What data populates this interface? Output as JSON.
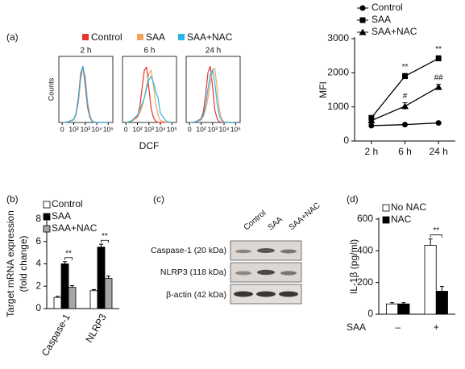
{
  "chart_data": [
    {
      "type": "flow",
      "panel": "(a)",
      "xlabel": "DCF",
      "ylabel": "Counts",
      "legend": [
        {
          "name": "Control",
          "color": "#e8332f"
        },
        {
          "name": "SAA",
          "color": "#f5a35a"
        },
        {
          "name": "SAA+NAC",
          "color": "#2bb5e8"
        }
      ],
      "xlim": [
        0.7,
        5.4
      ],
      "ylim": [
        0,
        100
      ],
      "xticks": [
        {
          "value": 1,
          "label": "0"
        },
        {
          "value": 2,
          "label": "10²"
        },
        {
          "value": 3,
          "label": "10³"
        },
        {
          "value": 4,
          "label": "10⁴"
        },
        {
          "value": 5,
          "label": "10⁵"
        }
      ],
      "x": [
        1,
        1.5,
        2,
        2.2,
        2.4,
        2.6,
        2.8,
        3.0,
        3.2,
        3.4,
        3.6,
        3.8,
        4.0,
        4.5,
        5
      ],
      "subplots": [
        {
          "title": "2 h",
          "series": [
            {
              "values": [
                0,
                1,
                5,
                15,
                40,
                80,
                92,
                60,
                25,
                8,
                2,
                0,
                0,
                0,
                0
              ]
            },
            {
              "values": [
                0,
                1,
                4,
                12,
                32,
                70,
                90,
                75,
                35,
                12,
                3,
                1,
                0,
                0,
                0
              ]
            },
            {
              "values": [
                0,
                1,
                5,
                14,
                36,
                75,
                92,
                68,
                30,
                10,
                2,
                0,
                0,
                0,
                0
              ]
            }
          ]
        },
        {
          "title": "6 h",
          "series": [
            {
              "values": [
                0,
                2,
                10,
                25,
                55,
                85,
                90,
                55,
                22,
                8,
                2,
                0,
                0,
                0,
                0
              ]
            },
            {
              "values": [
                0,
                2,
                8,
                15,
                25,
                40,
                60,
                80,
                85,
                60,
                30,
                12,
                3,
                0,
                0
              ]
            },
            {
              "values": [
                0,
                3,
                12,
                20,
                30,
                40,
                55,
                70,
                75,
                65,
                50,
                40,
                15,
                2,
                0
              ]
            }
          ]
        },
        {
          "title": "24 h",
          "series": [
            {
              "values": [
                0,
                1,
                6,
                18,
                45,
                82,
                92,
                58,
                20,
                6,
                1,
                0,
                0,
                0,
                0
              ]
            },
            {
              "values": [
                0,
                1,
                4,
                10,
                22,
                40,
                65,
                85,
                88,
                55,
                20,
                5,
                1,
                0,
                0
              ]
            },
            {
              "values": [
                0,
                1,
                5,
                12,
                28,
                55,
                78,
                86,
                65,
                30,
                10,
                3,
                0,
                0,
                0
              ]
            }
          ]
        }
      ]
    },
    {
      "type": "line",
      "ylabel": "MFI",
      "categories": [
        "2 h",
        "6 h",
        "24 h"
      ],
      "ylim": [
        0,
        3000
      ],
      "yticks": [
        0,
        1000,
        2000,
        3000
      ],
      "series": [
        {
          "name": "Control",
          "color": "#000000",
          "marker": "circle",
          "values": [
            450,
            480,
            530
          ],
          "errors": [
            30,
            30,
            30
          ],
          "marks": [
            null,
            null,
            null
          ]
        },
        {
          "name": "SAA",
          "color": "#000000",
          "marker": "square",
          "values": [
            680,
            1900,
            2420
          ],
          "errors": [
            50,
            80,
            80
          ],
          "marks": [
            null,
            "**",
            "**"
          ]
        },
        {
          "name": "SAA+NAC",
          "color": "#000000",
          "marker": "triangle",
          "values": [
            600,
            1020,
            1580
          ],
          "errors": [
            40,
            100,
            80
          ],
          "marks": [
            null,
            "#",
            "##"
          ]
        }
      ]
    },
    {
      "type": "bar",
      "panel": "(b)",
      "ylabel": [
        "Target mRNA expression",
        "(fold change)"
      ],
      "categories": [
        "Caspase-1",
        "NLRP3"
      ],
      "ylim": [
        0,
        8
      ],
      "yticks": [
        0,
        2,
        4,
        6,
        8
      ],
      "series": [
        {
          "name": "Control",
          "color": "#ffffff",
          "values": [
            1,
            1.6
          ],
          "errors": [
            0.1,
            0.1
          ]
        },
        {
          "name": "SAA",
          "color": "#000000",
          "values": [
            4.0,
            5.5
          ],
          "errors": [
            0.2,
            0.25
          ]
        },
        {
          "name": "SAA+NAC",
          "color": "#a6a6a6",
          "values": [
            1.9,
            2.7
          ],
          "errors": [
            0.15,
            0.2
          ]
        }
      ],
      "sig": [
        "**",
        "**"
      ]
    },
    {
      "type": "bar",
      "panel": "(d)",
      "ylabel": "IL-1β (pg/ml)",
      "xlabel": "SAA",
      "categories": [
        "–",
        "+"
      ],
      "ylim": [
        0,
        600
      ],
      "yticks": [
        0,
        200,
        400,
        600
      ],
      "series": [
        {
          "name": "No NAC",
          "color": "#ffffff",
          "values": [
            65,
            435
          ],
          "errors": [
            8,
            40
          ]
        },
        {
          "name": "NAC",
          "color": "#000000",
          "values": [
            65,
            145
          ],
          "errors": [
            8,
            30
          ]
        }
      ],
      "sig": [
        null,
        "**"
      ]
    }
  ],
  "blot": {
    "panel": "(c)",
    "columns": [
      "Control",
      "SAA",
      "SAA+NAC"
    ],
    "rows": [
      "Caspase-1 (20 kDa)",
      "NLRP3 (118 kDa)",
      "β-actin (42 kDa)"
    ]
  }
}
